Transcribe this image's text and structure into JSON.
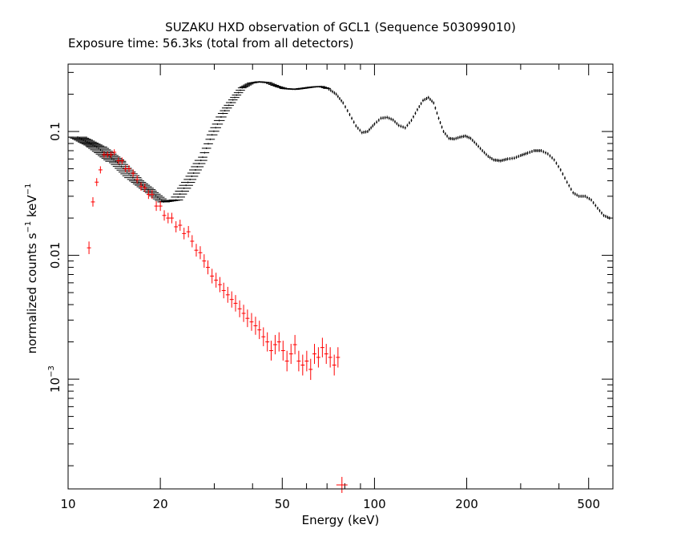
{
  "chart_data": {
    "type": "scatter",
    "title": "SUZAKU HXD observation of GCL1 (Sequence 503099010)",
    "subtitle": "Exposure time: 56.3ks (total from all detectors)",
    "xlabel": "Energy (keV)",
    "ylabel": {
      "prefix": "normalized counts s",
      "sup1": "−1",
      "mid": " keV",
      "sup2": "−1"
    },
    "x_scale": "log",
    "y_scale": "log",
    "xlim": [
      10,
      600
    ],
    "ylim": [
      0.00013,
      0.35
    ],
    "x_ticks": [
      {
        "value": 10,
        "label": "10"
      },
      {
        "value": 20,
        "label": "20"
      },
      {
        "value": 50,
        "label": "50"
      },
      {
        "value": 100,
        "label": "100"
      },
      {
        "value": 200,
        "label": "200"
      },
      {
        "value": 500,
        "label": "500"
      }
    ],
    "y_ticks": [
      {
        "value": 0.1,
        "label": "0.1"
      },
      {
        "value": 0.01,
        "label": "0.01"
      },
      {
        "value": 0.001,
        "label": "10",
        "sup": "−3"
      }
    ],
    "grid": false,
    "series": [
      {
        "color": "#000000",
        "points": [
          [
            10.75,
            0.09
          ],
          [
            12.4,
            0.075
          ],
          [
            14.5,
            0.056
          ],
          [
            16.5,
            0.041
          ],
          [
            18.5,
            0.033
          ],
          [
            20.5,
            0.027
          ],
          [
            22.5,
            0.028
          ],
          [
            25,
            0.041
          ],
          [
            27.5,
            0.062
          ],
          [
            29.5,
            0.094
          ],
          [
            32,
            0.14
          ],
          [
            34.5,
            0.18
          ],
          [
            37,
            0.225
          ],
          [
            39.5,
            0.246
          ],
          [
            42,
            0.252
          ],
          [
            45,
            0.248
          ],
          [
            48,
            0.232
          ],
          [
            51,
            0.222
          ],
          [
            55,
            0.219
          ],
          [
            59,
            0.224
          ],
          [
            63,
            0.229
          ],
          [
            67,
            0.231
          ],
          [
            71,
            0.22
          ],
          [
            75,
            0.2
          ],
          [
            79,
            0.17
          ],
          [
            83,
            0.137
          ],
          [
            87,
            0.111
          ],
          [
            91,
            0.098
          ],
          [
            95,
            0.1
          ],
          [
            100,
            0.115
          ],
          [
            105,
            0.128
          ],
          [
            110,
            0.13
          ],
          [
            115,
            0.124
          ],
          [
            120,
            0.112
          ],
          [
            126,
            0.107
          ],
          [
            132,
            0.123
          ],
          [
            138,
            0.15
          ],
          [
            144,
            0.178
          ],
          [
            150,
            0.188
          ],
          [
            156,
            0.17
          ],
          [
            162,
            0.128
          ],
          [
            168,
            0.1
          ],
          [
            175,
            0.088
          ],
          [
            182,
            0.087
          ],
          [
            190,
            0.09
          ],
          [
            198,
            0.092
          ],
          [
            206,
            0.088
          ],
          [
            215,
            0.079
          ],
          [
            225,
            0.07
          ],
          [
            235,
            0.063
          ],
          [
            245,
            0.059
          ],
          [
            258,
            0.058
          ],
          [
            272,
            0.06
          ],
          [
            286,
            0.061
          ],
          [
            300,
            0.064
          ],
          [
            316,
            0.067
          ],
          [
            332,
            0.07
          ],
          [
            350,
            0.07
          ],
          [
            368,
            0.066
          ],
          [
            386,
            0.059
          ],
          [
            405,
            0.049
          ],
          [
            425,
            0.039
          ],
          [
            445,
            0.032
          ],
          [
            465,
            0.03
          ],
          [
            487,
            0.03
          ],
          [
            510,
            0.028
          ],
          [
            535,
            0.024
          ],
          [
            560,
            0.021
          ],
          [
            585,
            0.02
          ]
        ]
      },
      {
        "color": "#ff0000",
        "points": [
          [
            11.7,
            0.0115
          ],
          [
            12.05,
            0.027
          ],
          [
            12.4,
            0.039
          ],
          [
            12.75,
            0.049
          ],
          [
            13.1,
            0.065
          ],
          [
            13.45,
            0.065
          ],
          [
            13.8,
            0.065
          ],
          [
            14.15,
            0.068
          ],
          [
            14.6,
            0.058
          ],
          [
            15.0,
            0.058
          ],
          [
            15.4,
            0.05
          ],
          [
            15.8,
            0.05
          ],
          [
            16.3,
            0.046
          ],
          [
            16.8,
            0.041
          ],
          [
            17.3,
            0.036
          ],
          [
            17.8,
            0.035
          ],
          [
            18.3,
            0.031
          ],
          [
            18.8,
            0.031
          ],
          [
            19.4,
            0.025
          ],
          [
            20.0,
            0.025
          ],
          [
            20.6,
            0.021
          ],
          [
            21.2,
            0.02
          ],
          [
            21.8,
            0.02
          ],
          [
            22.5,
            0.017
          ],
          [
            23.2,
            0.0175
          ],
          [
            23.9,
            0.015
          ],
          [
            24.7,
            0.0155
          ],
          [
            25.4,
            0.013
          ],
          [
            26.2,
            0.011
          ],
          [
            27.0,
            0.0105
          ],
          [
            27.8,
            0.009
          ],
          [
            28.6,
            0.008
          ],
          [
            29.5,
            0.0068
          ],
          [
            30.4,
            0.0063
          ],
          [
            31.3,
            0.0058
          ],
          [
            32.2,
            0.0052
          ],
          [
            33.2,
            0.0048
          ],
          [
            34.2,
            0.0044
          ],
          [
            35.2,
            0.0041
          ],
          [
            36.3,
            0.0037
          ],
          [
            37.4,
            0.0034
          ],
          [
            38.5,
            0.0031
          ],
          [
            39.7,
            0.0029
          ],
          [
            40.9,
            0.0027
          ],
          [
            42.1,
            0.0025
          ],
          [
            43.4,
            0.0022
          ],
          [
            44.7,
            0.002
          ],
          [
            46.0,
            0.0017
          ],
          [
            47.4,
            0.0019
          ],
          [
            48.8,
            0.002
          ],
          [
            50.3,
            0.0017
          ],
          [
            51.8,
            0.0014
          ],
          [
            53.4,
            0.0016
          ],
          [
            55.0,
            0.0019
          ],
          [
            56.6,
            0.0014
          ],
          [
            58.3,
            0.0013
          ],
          [
            60.1,
            0.0014
          ],
          [
            61.9,
            0.0012
          ],
          [
            63.7,
            0.0016
          ],
          [
            65.6,
            0.0015
          ],
          [
            67.6,
            0.0018
          ],
          [
            69.6,
            0.0016
          ],
          [
            71.7,
            0.0015
          ],
          [
            73.9,
            0.0013
          ],
          [
            76.0,
            0.0015
          ],
          [
            78.3,
            0.00014
          ]
        ]
      }
    ]
  }
}
